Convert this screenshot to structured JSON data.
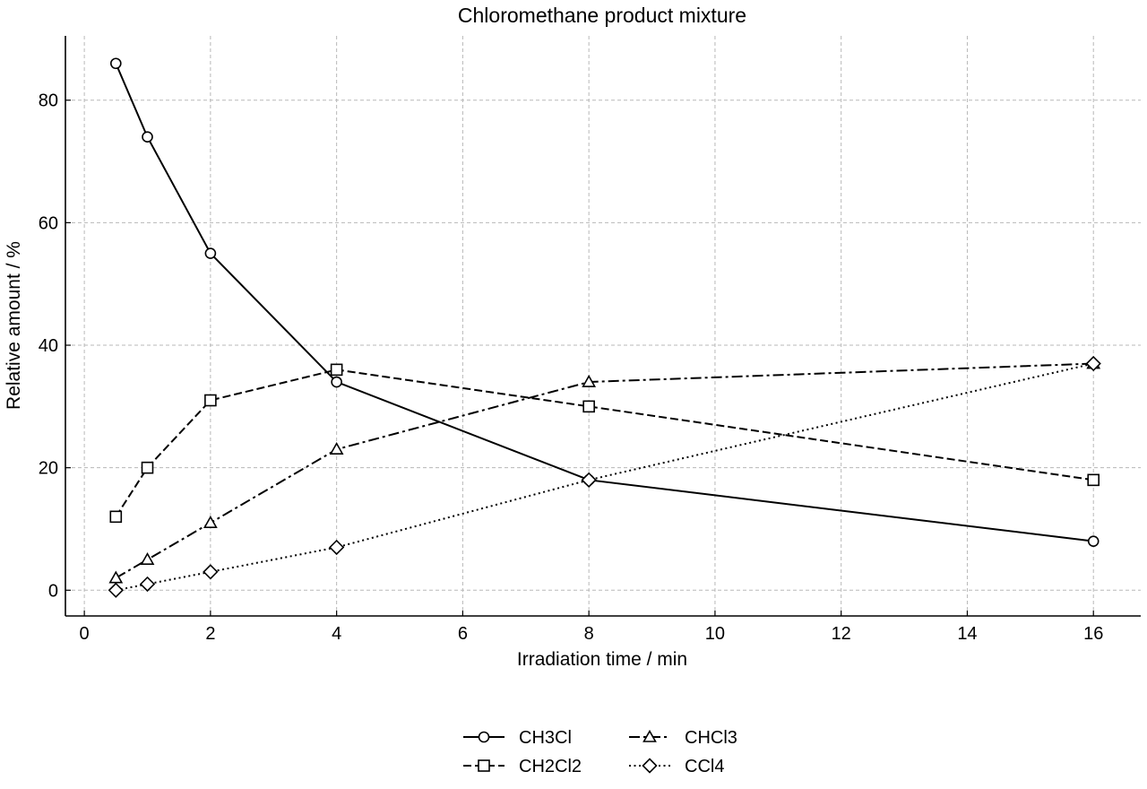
{
  "chart_data": {
    "type": "line",
    "title": "Chloromethane product mixture",
    "xlabel": "Irradiation time / min",
    "ylabel": "Relative amount / %",
    "x": [
      0.5,
      1,
      2,
      4,
      8,
      16
    ],
    "xlim": [
      -0.3,
      16.75
    ],
    "ylim": [
      -4.2,
      90.5
    ],
    "xticks": [
      0,
      2,
      4,
      6,
      8,
      10,
      12,
      14,
      16
    ],
    "yticks": [
      0,
      20,
      40,
      60,
      80
    ],
    "grid": true,
    "legend_position": "bottom-center",
    "series": [
      {
        "name": "CH3Cl",
        "values": [
          86,
          74,
          55,
          34,
          18,
          8
        ],
        "marker": "circle",
        "line_style": "solid",
        "color": "#000000"
      },
      {
        "name": "CH2Cl2",
        "values": [
          12,
          20,
          31,
          36,
          30,
          18
        ],
        "marker": "square",
        "line_style": "dashed",
        "color": "#000000"
      },
      {
        "name": "CHCl3",
        "values": [
          2,
          5,
          11,
          23,
          34,
          37
        ],
        "marker": "triangle",
        "line_style": "dashdot",
        "color": "#000000"
      },
      {
        "name": "CCl4",
        "values": [
          0,
          1,
          3,
          7,
          18,
          37
        ],
        "marker": "diamond",
        "line_style": "dotted",
        "color": "#000000"
      }
    ]
  }
}
